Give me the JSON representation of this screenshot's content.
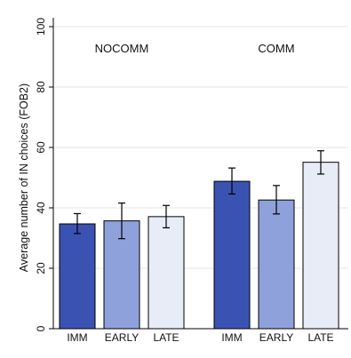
{
  "chart_data": {
    "type": "bar",
    "ylabel": "Average number of IN choices (FOB2)",
    "ylim": [
      0,
      100
    ],
    "yticks": [
      0,
      20,
      40,
      60,
      80,
      100
    ],
    "grid": true,
    "categories": [
      "IMM",
      "EARLY",
      "LATE"
    ],
    "colors": [
      "#3a53b3",
      "#8fa1da",
      "#e8ecf7"
    ],
    "groups": [
      {
        "label": "NOCOMM",
        "bars": [
          {
            "category": "IMM",
            "value": 34.7,
            "err_low": 31.5,
            "err_high": 38.1
          },
          {
            "category": "EARLY",
            "value": 35.7,
            "err_low": 29.8,
            "err_high": 41.6
          },
          {
            "category": "LATE",
            "value": 37.1,
            "err_low": 33.4,
            "err_high": 40.8
          }
        ]
      },
      {
        "label": "COMM",
        "bars": [
          {
            "category": "IMM",
            "value": 48.8,
            "err_low": 44.6,
            "err_high": 53.2
          },
          {
            "category": "EARLY",
            "value": 42.6,
            "err_low": 38.0,
            "err_high": 47.4
          },
          {
            "category": "LATE",
            "value": 55.1,
            "err_low": 51.2,
            "err_high": 58.9
          }
        ]
      }
    ]
  }
}
